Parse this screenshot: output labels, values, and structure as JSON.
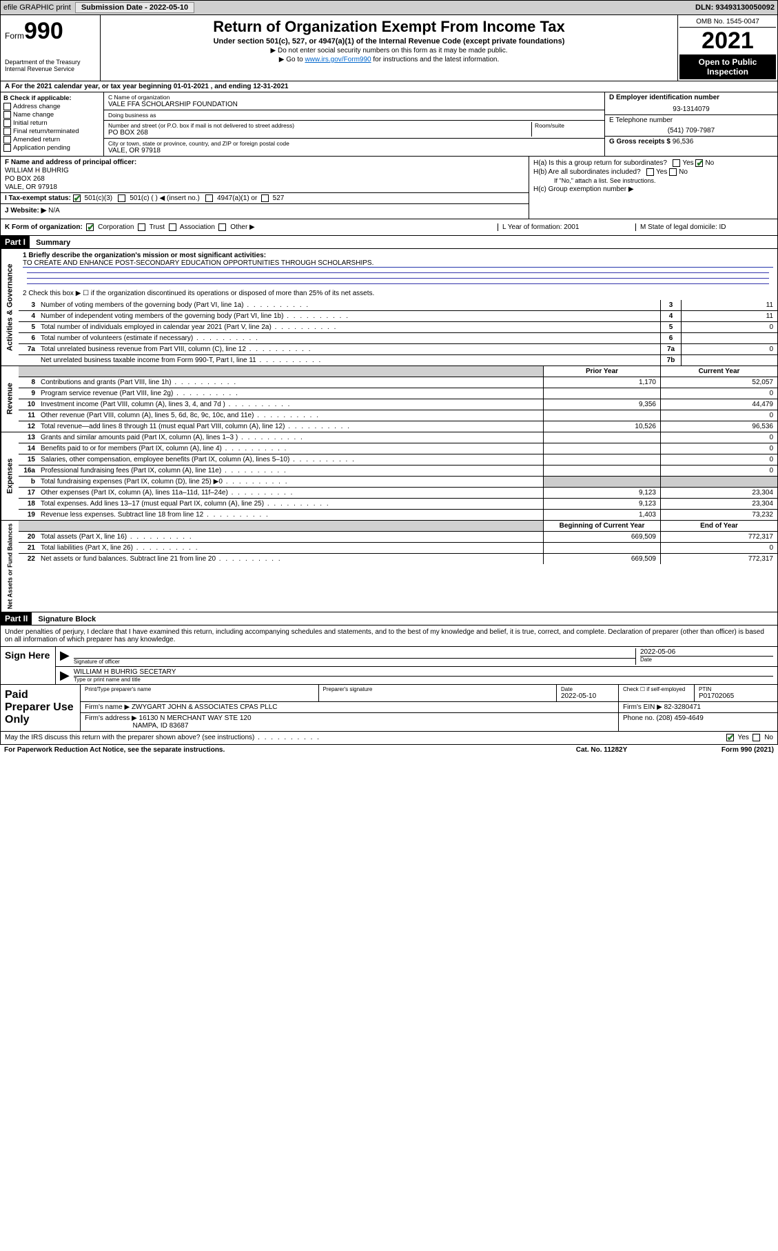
{
  "topbar": {
    "efile": "efile GRAPHIC print",
    "submission_label": "Submission Date - 2022-05-10",
    "dln_label": "DLN: 93493130050092"
  },
  "header": {
    "form_label": "Form",
    "form_number": "990",
    "dept_label": "Department of the Treasury\nInternal Revenue Service",
    "title": "Return of Organization Exempt From Income Tax",
    "subtitle": "Under section 501(c), 527, or 4947(a)(1) of the Internal Revenue Code (except private foundations)",
    "sub2": "▶ Do not enter social security numbers on this form as it may be made public.",
    "sub3_pre": "▶ Go to ",
    "sub3_link": "www.irs.gov/Form990",
    "sub3_post": " for instructions and the latest information.",
    "omb": "OMB No. 1545-0047",
    "tax_year": "2021",
    "open_public": "Open to Public Inspection"
  },
  "row_a": {
    "text": "A For the 2021 calendar year, or tax year beginning 01-01-2021    , and ending 12-31-2021"
  },
  "col_b": {
    "header": "B Check if applicable:",
    "opts": [
      "Address change",
      "Name change",
      "Initial return",
      "Final return/terminated",
      "Amended return",
      "Application pending"
    ]
  },
  "col_c": {
    "name_label": "C Name of organization",
    "name": "VALE FFA SCHOLARSHIP FOUNDATION",
    "dba_label": "Doing business as",
    "dba": "",
    "addr_label": "Number and street (or P.O. box if mail is not delivered to street address)",
    "room_label": "Room/suite",
    "addr": "PO BOX 268",
    "city_label": "City or town, state or province, country, and ZIP or foreign postal code",
    "city": "VALE, OR  97918"
  },
  "col_d": {
    "ein_label": "D Employer identification number",
    "ein": "93-1314079",
    "phone_label": "E Telephone number",
    "phone": "(541) 709-7987",
    "gross_label": "G Gross receipts $",
    "gross": "96,536"
  },
  "col_f": {
    "label": "F Name and address of principal officer:",
    "name": "WILLIAM H BUHRIG",
    "addr1": "PO BOX 268",
    "addr2": "VALE, OR  97918"
  },
  "row_i": {
    "label": "I     Tax-exempt status:",
    "opt1": "501(c)(3)",
    "opt2": "501(c) (  ) ◀ (insert no.)",
    "opt3": "4947(a)(1) or",
    "opt4": "527"
  },
  "row_j": {
    "label": "J    Website: ▶",
    "value": "N/A"
  },
  "col_h": {
    "ha_label": "H(a)  Is this a group return for subordinates?",
    "hb_label": "H(b)  Are all subordinates included?",
    "hb_note": "If \"No,\" attach a list. See instructions.",
    "hc_label": "H(c)  Group exemption number ▶"
  },
  "row_k": {
    "label": "K Form of organization:",
    "opts": [
      "Corporation",
      "Trust",
      "Association",
      "Other ▶"
    ]
  },
  "row_l": {
    "label": "L Year of formation: 2001"
  },
  "row_m": {
    "label": "M State of legal domicile: ID"
  },
  "part1": {
    "header": "Part I",
    "title": "Summary",
    "line1_label": "1   Briefly describe the organization's mission or most significant activities:",
    "line1_text": "TO CREATE AND ENHANCE POST-SECONDARY EDUCATION OPPORTUNITIES THROUGH SCHOLARSHIPS.",
    "line2": "2    Check this box ▶ ☐  if the organization discontinued its operations or disposed of more than 25% of its net assets."
  },
  "governance_lines": [
    {
      "num": "3",
      "desc": "Number of voting members of the governing body (Part VI, line 1a)",
      "box": "3",
      "val": "11"
    },
    {
      "num": "4",
      "desc": "Number of independent voting members of the governing body (Part VI, line 1b)",
      "box": "4",
      "val": "11"
    },
    {
      "num": "5",
      "desc": "Total number of individuals employed in calendar year 2021 (Part V, line 2a)",
      "box": "5",
      "val": "0"
    },
    {
      "num": "6",
      "desc": "Total number of volunteers (estimate if necessary)",
      "box": "6",
      "val": ""
    },
    {
      "num": "7a",
      "desc": "Total unrelated business revenue from Part VIII, column (C), line 12",
      "box": "7a",
      "val": "0"
    },
    {
      "num": "",
      "desc": "Net unrelated business taxable income from Form 990-T, Part I, line 11",
      "box": "7b",
      "val": ""
    }
  ],
  "col_headers": {
    "prior": "Prior Year",
    "current": "Current Year",
    "beg": "Beginning of Current Year",
    "end": "End of Year"
  },
  "revenue_lines": [
    {
      "num": "8",
      "desc": "Contributions and grants (Part VIII, line 1h)",
      "prior": "1,170",
      "curr": "52,057"
    },
    {
      "num": "9",
      "desc": "Program service revenue (Part VIII, line 2g)",
      "prior": "",
      "curr": "0"
    },
    {
      "num": "10",
      "desc": "Investment income (Part VIII, column (A), lines 3, 4, and 7d )",
      "prior": "9,356",
      "curr": "44,479"
    },
    {
      "num": "11",
      "desc": "Other revenue (Part VIII, column (A), lines 5, 6d, 8c, 9c, 10c, and 11e)",
      "prior": "",
      "curr": "0"
    },
    {
      "num": "12",
      "desc": "Total revenue—add lines 8 through 11 (must equal Part VIII, column (A), line 12)",
      "prior": "10,526",
      "curr": "96,536"
    }
  ],
  "expense_lines": [
    {
      "num": "13",
      "desc": "Grants and similar amounts paid (Part IX, column (A), lines 1–3 )",
      "prior": "",
      "curr": "0"
    },
    {
      "num": "14",
      "desc": "Benefits paid to or for members (Part IX, column (A), line 4)",
      "prior": "",
      "curr": "0"
    },
    {
      "num": "15",
      "desc": "Salaries, other compensation, employee benefits (Part IX, column (A), lines 5–10)",
      "prior": "",
      "curr": "0"
    },
    {
      "num": "16a",
      "desc": "Professional fundraising fees (Part IX, column (A), line 11e)",
      "prior": "",
      "curr": "0"
    },
    {
      "num": "b",
      "desc": "Total fundraising expenses (Part IX, column (D), line 25) ▶0",
      "prior": "shade",
      "curr": "shade"
    },
    {
      "num": "17",
      "desc": "Other expenses (Part IX, column (A), lines 11a–11d, 11f–24e)",
      "prior": "9,123",
      "curr": "23,304"
    },
    {
      "num": "18",
      "desc": "Total expenses. Add lines 13–17 (must equal Part IX, column (A), line 25)",
      "prior": "9,123",
      "curr": "23,304"
    },
    {
      "num": "19",
      "desc": "Revenue less expenses. Subtract line 18 from line 12",
      "prior": "1,403",
      "curr": "73,232"
    }
  ],
  "netassets_lines": [
    {
      "num": "20",
      "desc": "Total assets (Part X, line 16)",
      "prior": "669,509",
      "curr": "772,317"
    },
    {
      "num": "21",
      "desc": "Total liabilities (Part X, line 26)",
      "prior": "",
      "curr": "0"
    },
    {
      "num": "22",
      "desc": "Net assets or fund balances. Subtract line 21 from line 20",
      "prior": "669,509",
      "curr": "772,317"
    }
  ],
  "side_labels": {
    "gov": "Activities & Governance",
    "rev": "Revenue",
    "exp": "Expenses",
    "net": "Net Assets or Fund Balances"
  },
  "part2": {
    "header": "Part II",
    "title": "Signature Block",
    "penalty": "Under penalties of perjury, I declare that I have examined this return, including accompanying schedules and statements, and to the best of my knowledge and belief, it is true, correct, and complete. Declaration of preparer (other than officer) is based on all information of which preparer has any knowledge.",
    "sign_here": "Sign Here",
    "sig_officer_label": "Signature of officer",
    "sig_date": "2022-05-06",
    "sig_date_label": "Date",
    "officer_name": "WILLIAM H BUHRIG  SECETARY",
    "officer_label": "Type or print name and title",
    "paid_prep": "Paid Preparer Use Only",
    "prep_name_label": "Print/Type preparer's name",
    "prep_sig_label": "Preparer's signature",
    "prep_date_label": "Date",
    "prep_date": "2022-05-10",
    "prep_self_label": "Check ☐ if self-employed",
    "ptin_label": "PTIN",
    "ptin": "P01702065",
    "firm_name_label": "Firm's name    ▶",
    "firm_name": "ZWYGART JOHN & ASSOCIATES CPAS PLLC",
    "firm_ein_label": "Firm's EIN ▶",
    "firm_ein": "82-3280471",
    "firm_addr_label": "Firm's address ▶",
    "firm_addr1": "16130 N MERCHANT WAY STE 120",
    "firm_addr2": "NAMPA, ID  83687",
    "firm_phone_label": "Phone no.",
    "firm_phone": "(208) 459-4649",
    "discuss": "May the IRS discuss this return with the preparer shown above? (see instructions)"
  },
  "footer": {
    "paperwork": "For Paperwork Reduction Act Notice, see the separate instructions.",
    "cat": "Cat. No. 11282Y",
    "form": "Form 990 (2021)"
  },
  "yes": "Yes",
  "no": "No"
}
